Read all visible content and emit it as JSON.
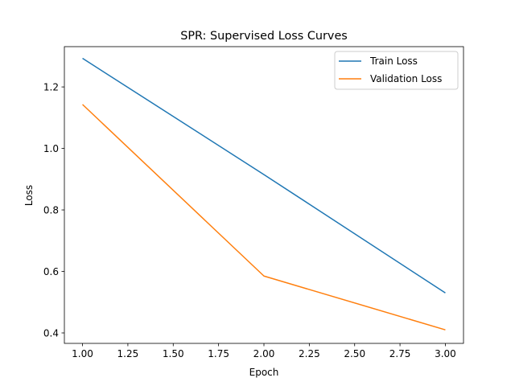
{
  "chart_data": {
    "type": "line",
    "title": "SPR: Supervised Loss Curves",
    "xlabel": "Epoch",
    "ylabel": "Loss",
    "x": [
      1.0,
      2.0,
      3.0
    ],
    "series": [
      {
        "name": "Train Loss",
        "color": "#1f77b4",
        "values": [
          1.293,
          0.915,
          0.53
        ]
      },
      {
        "name": "Validation Loss",
        "color": "#ff7f0e",
        "values": [
          1.143,
          0.585,
          0.41
        ]
      }
    ],
    "xlim": [
      0.9,
      3.1
    ],
    "ylim": [
      0.366,
      1.331
    ],
    "xticks": [
      1.0,
      1.25,
      1.5,
      1.75,
      2.0,
      2.25,
      2.5,
      2.75,
      3.0
    ],
    "xtick_labels": [
      "1.00",
      "1.25",
      "1.50",
      "1.75",
      "2.00",
      "2.25",
      "2.50",
      "2.75",
      "3.00"
    ],
    "yticks": [
      0.4,
      0.6,
      0.8,
      1.0,
      1.2
    ],
    "ytick_labels": [
      "0.4",
      "0.6",
      "0.8",
      "1.0",
      "1.2"
    ],
    "grid": false,
    "legend_position": "top-right"
  }
}
